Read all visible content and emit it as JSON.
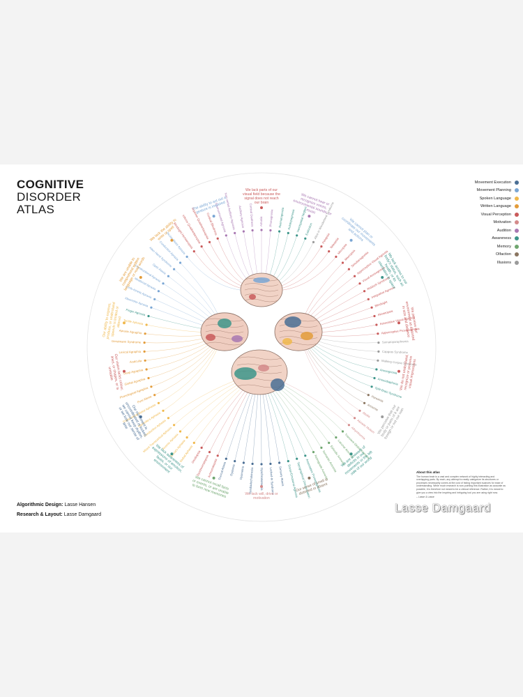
{
  "title": {
    "line1": "COGNITIVE",
    "line2": "DISORDER",
    "line3": "ATLAS"
  },
  "credits": {
    "design_label": "Algorithmic Design:",
    "design_name": "Lasse Hansen",
    "layout_label": "Research & Layout:",
    "layout_name": "Lasse Damgaard"
  },
  "legend": [
    {
      "label": "Movement Execution",
      "color": "#4a6e94"
    },
    {
      "label": "Movement Planning",
      "color": "#7aa6d4"
    },
    {
      "label": "Spoken Language",
      "color": "#f0b84c"
    },
    {
      "label": "Written Language",
      "color": "#e39c3a"
    },
    {
      "label": "Visual Perception",
      "color": "#c95a5a"
    },
    {
      "label": "Motivation",
      "color": "#d48a8a"
    },
    {
      "label": "Audition",
      "color": "#a878b2"
    },
    {
      "label": "Awareness",
      "color": "#3d958a"
    },
    {
      "label": "Memory",
      "color": "#6fa66f"
    },
    {
      "label": "Olfaction",
      "color": "#8a7560"
    },
    {
      "label": "Illusions",
      "color": "#9a9a9a"
    }
  ],
  "captions": [
    {
      "text": "We lack parts of our visual field because the signal does not reach our brain",
      "color": "#c95a5a"
    },
    {
      "text": "We cannot hear or recognize voices, environmental sounds, or music",
      "color": "#a878b2"
    },
    {
      "text": "We cannot plan or coordinate our movements and actions",
      "color": "#7aa6d4"
    },
    {
      "text": "We lack access to our body's status, such as health, or its orientation in space",
      "color": "#3d958a"
    },
    {
      "text": "We perceive our environment as distorted in size and distance",
      "color": "#c95a5a"
    },
    {
      "text": "We do not understand, recognize or perceive visual impressions",
      "color": "#c95a5a"
    },
    {
      "text": "We perceive that our body or parts of it are foreign or not our own",
      "color": "#9a9a9a"
    },
    {
      "text": "We are unaware of deficits in our movements or the left side of our world",
      "color": "#3d958a"
    },
    {
      "text": "Our sense of smell is distorted or absent",
      "color": "#8a7560"
    },
    {
      "text": "We lack will, drive or motivation",
      "color": "#d48a8a"
    },
    {
      "text": "We cannot recall facts or events, or are unable to form new memories",
      "color": "#6fa66f"
    },
    {
      "text": "We lack awareness of expressions of emotion, faces, or our environment",
      "color": "#3d958a"
    },
    {
      "text": "Our movement is uncoordinated or locked, we cannot keep rhythm, or we lose our sense of time",
      "color": "#4a6e94"
    },
    {
      "text": "Our vision lacks colour, lines, or shapes, or is unstable",
      "color": "#c95a5a"
    },
    {
      "text": "Our ability to express, produce, or understand speech is limited or altered",
      "color": "#f0b84c"
    },
    {
      "text": "We are unable to comprehend written language or read words",
      "color": "#e39c3a"
    },
    {
      "text": "We lack the ability to write or spell",
      "color": "#e39c3a"
    },
    {
      "text": "The ability to act out a gesture is impaired",
      "color": "#7aa6d4"
    }
  ],
  "disorders": [
    {
      "label": "Blindsight Hemianopsia",
      "color": "#c95a5a"
    },
    {
      "label": "Inferior Quadrantanopsia",
      "color": "#c95a5a"
    },
    {
      "label": "Superior Quadrantanopsia",
      "color": "#c95a5a"
    },
    {
      "label": "Cortical Blindness",
      "color": "#c95a5a"
    },
    {
      "label": "Environmental Agnosia",
      "color": "#a878b2"
    },
    {
      "label": "Non-verbal Auditory Agnosia",
      "color": "#a878b2"
    },
    {
      "label": "Auditory Agnosia",
      "color": "#a878b2"
    },
    {
      "label": "Cortical Deafness",
      "color": "#a878b2"
    },
    {
      "label": "Amusia",
      "color": "#a878b2"
    },
    {
      "label": "Phonagnosia",
      "color": "#a878b2"
    },
    {
      "label": "Asomatognosia",
      "color": "#3d958a"
    },
    {
      "label": "Autotopagnosia",
      "color": "#3d958a"
    },
    {
      "label": "Hemispatial Neglect",
      "color": "#3d958a"
    },
    {
      "label": "Extinction",
      "color": "#3d958a"
    },
    {
      "label": "Alice in Wonderland Syndrome",
      "color": "#9a9a9a"
    },
    {
      "label": "Pelopsia",
      "color": "#c95a5a"
    },
    {
      "label": "Teleopsia",
      "color": "#c95a5a"
    },
    {
      "label": "Micropsia",
      "color": "#c95a5a"
    },
    {
      "label": "Macropsia",
      "color": "#c95a5a"
    },
    {
      "label": "Simultanagnosia",
      "color": "#c95a5a"
    },
    {
      "label": "Apperceptive Visual Agnosia",
      "color": "#c95a5a"
    },
    {
      "label": "Visual Anosognosia",
      "color": "#c95a5a"
    },
    {
      "label": "Riddoch Syndrome",
      "color": "#c95a5a"
    },
    {
      "label": "Integrative Agnosia",
      "color": "#c95a5a"
    },
    {
      "label": "Blindsight",
      "color": "#c95a5a"
    },
    {
      "label": "Akinetopsia",
      "color": "#c95a5a"
    },
    {
      "label": "Associative Visual Agnosia",
      "color": "#c95a5a"
    },
    {
      "label": "Apperceptive Prosopagnosia",
      "color": "#c95a5a"
    },
    {
      "label": "Somatoparaphrenia",
      "color": "#9a9a9a"
    },
    {
      "label": "Capgras Syndrome",
      "color": "#9a9a9a"
    },
    {
      "label": "Walking Corpse Syndrome",
      "color": "#9a9a9a"
    },
    {
      "label": "Anosognosia",
      "color": "#3d958a"
    },
    {
      "label": "Anosodiaphoria",
      "color": "#3d958a"
    },
    {
      "label": "Split-Brain Syndrome",
      "color": "#3d958a"
    },
    {
      "label": "Parosmia",
      "color": "#8a7560"
    },
    {
      "label": "Anosmia",
      "color": "#8a7560"
    },
    {
      "label": "Abulia",
      "color": "#d48a8a"
    },
    {
      "label": "Akinetic Mutism",
      "color": "#d48a8a"
    },
    {
      "label": "Athymhormia",
      "color": "#d48a8a"
    },
    {
      "label": "Transient Global Amnesia",
      "color": "#6fa66f"
    },
    {
      "label": "Lacunar Amnesia",
      "color": "#6fa66f"
    },
    {
      "label": "Episodic Amnesia",
      "color": "#6fa66f"
    },
    {
      "label": "Semantic Amnesia",
      "color": "#6fa66f"
    },
    {
      "label": "Retrograde Amnesia",
      "color": "#6fa66f"
    },
    {
      "label": "Associative Prosopagnosia",
      "color": "#3d958a"
    },
    {
      "label": "Topographical Disorientation",
      "color": "#3d958a"
    },
    {
      "label": "Social-Emotional Agnosia",
      "color": "#3d958a"
    },
    {
      "label": "Sensory Ataxia",
      "color": "#4a6e94"
    },
    {
      "label": "Locked-In Syndrome",
      "color": "#4a6e94"
    },
    {
      "label": "Dyschronometria",
      "color": "#4a6e94"
    },
    {
      "label": "Dysdiadochokinesia",
      "color": "#4a6e94"
    },
    {
      "label": "Dysmetria",
      "color": "#4a6e94"
    },
    {
      "label": "Dystonia",
      "color": "#4a6e94"
    },
    {
      "label": "Truncal Ataxia",
      "color": "#4a6e94"
    },
    {
      "label": "Achromatopsia",
      "color": "#c95a5a"
    },
    {
      "label": "Dyschromatopsia",
      "color": "#c95a5a"
    },
    {
      "label": "Oscillopsia",
      "color": "#c95a5a"
    },
    {
      "label": "Global Aphasia",
      "color": "#f0b84c"
    },
    {
      "label": "Broca's Aphasia",
      "color": "#f0b84c"
    },
    {
      "label": "Anomic Aphasia",
      "color": "#f0b84c"
    },
    {
      "label": "Mixed Transcortical Aphasia",
      "color": "#f0b84c"
    },
    {
      "label": "Conduction Aphasia",
      "color": "#f0b84c"
    },
    {
      "label": "Wernicke's Aphasia",
      "color": "#f0b84c"
    },
    {
      "label": "Transcortical Motor Aphasia",
      "color": "#f0b84c"
    },
    {
      "label": "Pure Alexia",
      "color": "#e39c3a"
    },
    {
      "label": "Phonological Agraphia",
      "color": "#e39c3a"
    },
    {
      "label": "Global Agraphia",
      "color": "#e39c3a"
    },
    {
      "label": "Deep Agraphia",
      "color": "#e39c3a"
    },
    {
      "label": "Acalculia",
      "color": "#e39c3a"
    },
    {
      "label": "Lexical Agraphia",
      "color": "#e39c3a"
    },
    {
      "label": "Gerstmann Syndrome",
      "color": "#e39c3a"
    },
    {
      "label": "Apraxic Agraphia",
      "color": "#e39c3a"
    },
    {
      "label": "Tactile Aphasia",
      "color": "#f0b84c"
    },
    {
      "label": "Finger Agnosia",
      "color": "#3d958a"
    },
    {
      "label": "Ideomotor Apraxia",
      "color": "#7aa6d4"
    },
    {
      "label": "Limb-Kinetic Apraxia",
      "color": "#7aa6d4"
    },
    {
      "label": "Ideational Apraxia",
      "color": "#7aa6d4"
    },
    {
      "label": "Constructional Apraxia",
      "color": "#7aa6d4"
    },
    {
      "label": "Optic Ataxia",
      "color": "#7aa6d4"
    },
    {
      "label": "Alien Hand Syndrome",
      "color": "#7aa6d4"
    },
    {
      "label": "Conduction Apraxia",
      "color": "#7aa6d4"
    },
    {
      "label": "Ocular Motor Apraxia",
      "color": "#7aa6d4"
    }
  ],
  "about": {
    "heading": "About this atlas",
    "body": "The human brain is a vast and complex network of highly interacting and overlapping parts. By each, any attempt to neatly categorize its structures or processes necessarily comes at the cost of hiding important nuances for ease of understanding. While much research is now pointing this illustration as accurate as possible, it is therefore not meant to be a clinical reference. Rather, it is meant to give you a view into the inspiring and intriguing tool you are using right now.",
    "signature": "– Lasse & Lasse"
  },
  "watermark": "Lasse Damgaard"
}
